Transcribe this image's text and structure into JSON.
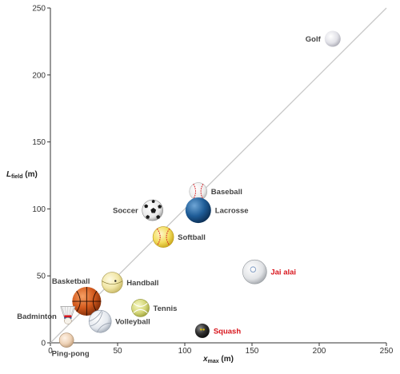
{
  "chart_data": {
    "type": "scatter",
    "xlabel": {
      "main": "x",
      "sub": "max",
      "unit": " (m)"
    },
    "ylabel": {
      "main": "L",
      "sub": "field",
      "unit": " (m)"
    },
    "xlim": [
      0,
      250
    ],
    "ylim": [
      0,
      250
    ],
    "x_ticks": [
      0,
      50,
      100,
      150,
      200,
      250
    ],
    "y_ticks": [
      0,
      50,
      100,
      150,
      200,
      250
    ],
    "grid": false,
    "reference_line": {
      "from": [
        0,
        0
      ],
      "to": [
        250,
        250
      ],
      "color": "#c8c8c8"
    },
    "points": [
      {
        "name": "Golf",
        "x": 210,
        "y": 227,
        "ball": "golf",
        "label_pos": "left",
        "highlight": false
      },
      {
        "name": "Baseball",
        "x": 110,
        "y": 113,
        "ball": "baseball",
        "label_pos": "right",
        "highlight": false
      },
      {
        "name": "Lacrosse",
        "x": 110,
        "y": 99,
        "ball": "lacrosse",
        "label_pos": "right",
        "highlight": false
      },
      {
        "name": "Soccer",
        "x": 76,
        "y": 99,
        "ball": "soccer",
        "label_pos": "left",
        "highlight": false
      },
      {
        "name": "Softball",
        "x": 84,
        "y": 79,
        "ball": "softball",
        "label_pos": "right",
        "highlight": false
      },
      {
        "name": "Jai alai",
        "x": 152,
        "y": 53,
        "ball": "jaialai",
        "label_pos": "right",
        "highlight": true
      },
      {
        "name": "Handball",
        "x": 46,
        "y": 45,
        "ball": "handball",
        "label_pos": "right",
        "highlight": false
      },
      {
        "name": "Basketball",
        "x": 27,
        "y": 31,
        "ball": "basketball",
        "label_pos": "topleft",
        "highlight": false
      },
      {
        "name": "Tennis",
        "x": 67,
        "y": 26,
        "ball": "tennis",
        "label_pos": "right",
        "highlight": false
      },
      {
        "name": "Badminton",
        "x": 13,
        "y": 20,
        "ball": "badminton",
        "label_pos": "left",
        "highlight": false
      },
      {
        "name": "Volleyball",
        "x": 37,
        "y": 16,
        "ball": "volleyball",
        "label_pos": "right",
        "highlight": false
      },
      {
        "name": "Squash",
        "x": 113,
        "y": 9,
        "ball": "squash",
        "label_pos": "right",
        "highlight": true
      },
      {
        "name": "Ping-pong",
        "x": 12,
        "y": 2,
        "ball": "pingpong",
        "label_pos": "below",
        "highlight": false
      }
    ],
    "colors": {
      "highlight_label": "#d8151c",
      "label": "#444444",
      "axis": "#333333"
    }
  }
}
